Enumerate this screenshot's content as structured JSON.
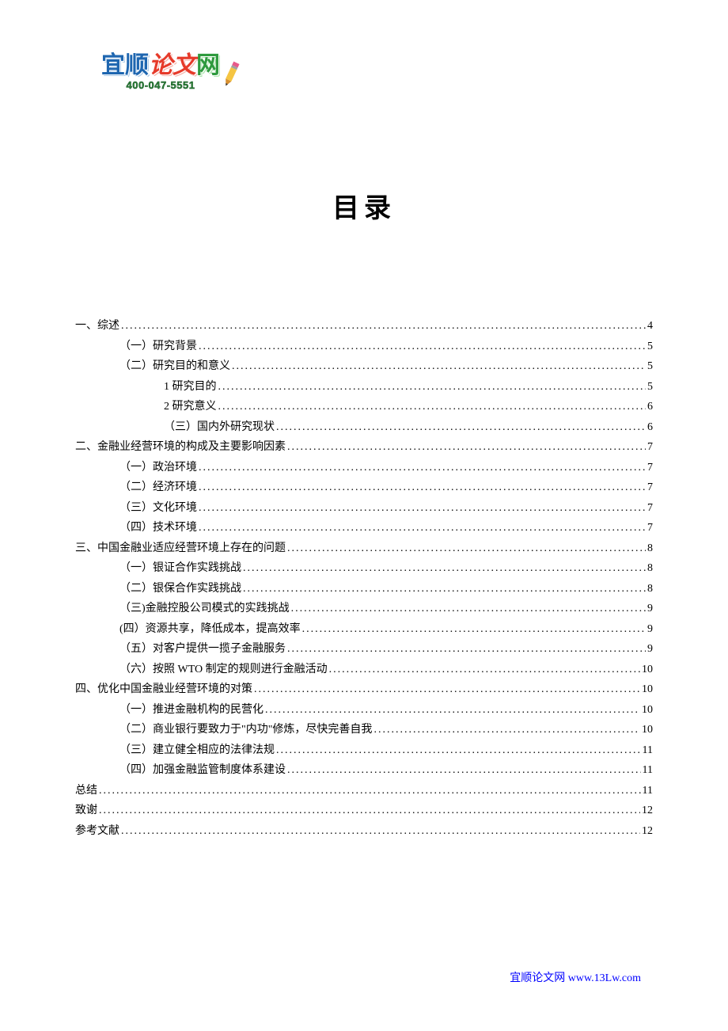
{
  "logo": {
    "chars": [
      {
        "text": "宜",
        "colorClass": "logo-char-blue"
      },
      {
        "text": "顺",
        "colorClass": "logo-char-blue"
      },
      {
        "text": "论",
        "colorClass": "logo-char-red"
      },
      {
        "text": "文",
        "colorClass": "logo-char-red"
      },
      {
        "text": "网",
        "colorClass": "logo-char-green"
      }
    ],
    "phone": "400-047-5551",
    "pencilColors": {
      "body": "#f5c542",
      "tip": "#d89030",
      "eraser": "#e85a8a",
      "band": "#a0a0a0"
    }
  },
  "title": "目录",
  "toc": {
    "entries": [
      {
        "label": "一、综述",
        "page": "4",
        "indent": 0
      },
      {
        "label": "（一）研究背景",
        "page": "5",
        "indent": 1
      },
      {
        "label": "（二）研究目的和意义",
        "page": "5",
        "indent": 1
      },
      {
        "label": "1 研究目的",
        "page": "5",
        "indent": 2
      },
      {
        "label": "2 研究意义",
        "page": "6",
        "indent": 2
      },
      {
        "label": "（三）国内外研究现状",
        "page": "6",
        "indent": 2
      },
      {
        "label": "二、金融业经营环境的构成及主要影响因素",
        "page": "7",
        "indent": 0
      },
      {
        "label": "（一）政治环境",
        "page": "7",
        "indent": 1
      },
      {
        "label": "（二）经济环境",
        "page": "7",
        "indent": 1
      },
      {
        "label": "（三）文化环境",
        "page": "7",
        "indent": 1
      },
      {
        "label": "（四）技术环境",
        "page": "7",
        "indent": 1
      },
      {
        "label": "三、中国金融业适应经营环境上存在的问题",
        "page": "8",
        "indent": 0
      },
      {
        "label": "（一）银证合作实践挑战",
        "page": "8",
        "indent": 1
      },
      {
        "label": "（二）银保合作实践挑战",
        "page": "8",
        "indent": 1
      },
      {
        "label": "（三)金融控股公司模式的实践挑战 ",
        "page": "9",
        "indent": 1
      },
      {
        "label": "(四）资源共享，降低成本，提高效率 ",
        "page": "9",
        "indent": 1
      },
      {
        "label": "（五）对客户提供一揽子金融服务",
        "page": "9",
        "indent": 1
      },
      {
        "label": "（六）按照 WTO 制定的规则进行金融活动",
        "page": "10",
        "indent": 1
      },
      {
        "label": "四、优化中国金融业经营环境的对策",
        "page": "10",
        "indent": 0
      },
      {
        "label": "（一）推进金融机构的民营化",
        "page": "10",
        "indent": 1
      },
      {
        "label": "（二）商业银行要致力于\"内功\"修炼，尽快完善自我",
        "page": "10",
        "indent": 1
      },
      {
        "label": "（三）建立健全相应的法律法规",
        "page": "11",
        "indent": 1
      },
      {
        "label": "（四）加强金融监管制度体系建设",
        "page": "11",
        "indent": 1
      },
      {
        "label": "总结",
        "page": "11",
        "indent": 0
      },
      {
        "label": "致谢",
        "page": "12",
        "indent": 0
      },
      {
        "label": "参考文献",
        "page": "12",
        "indent": 0
      }
    ]
  },
  "footer": "宜顺论文网 www.13Lw.com",
  "colors": {
    "background": "#ffffff",
    "text": "#000000",
    "link": "#0000ff"
  }
}
